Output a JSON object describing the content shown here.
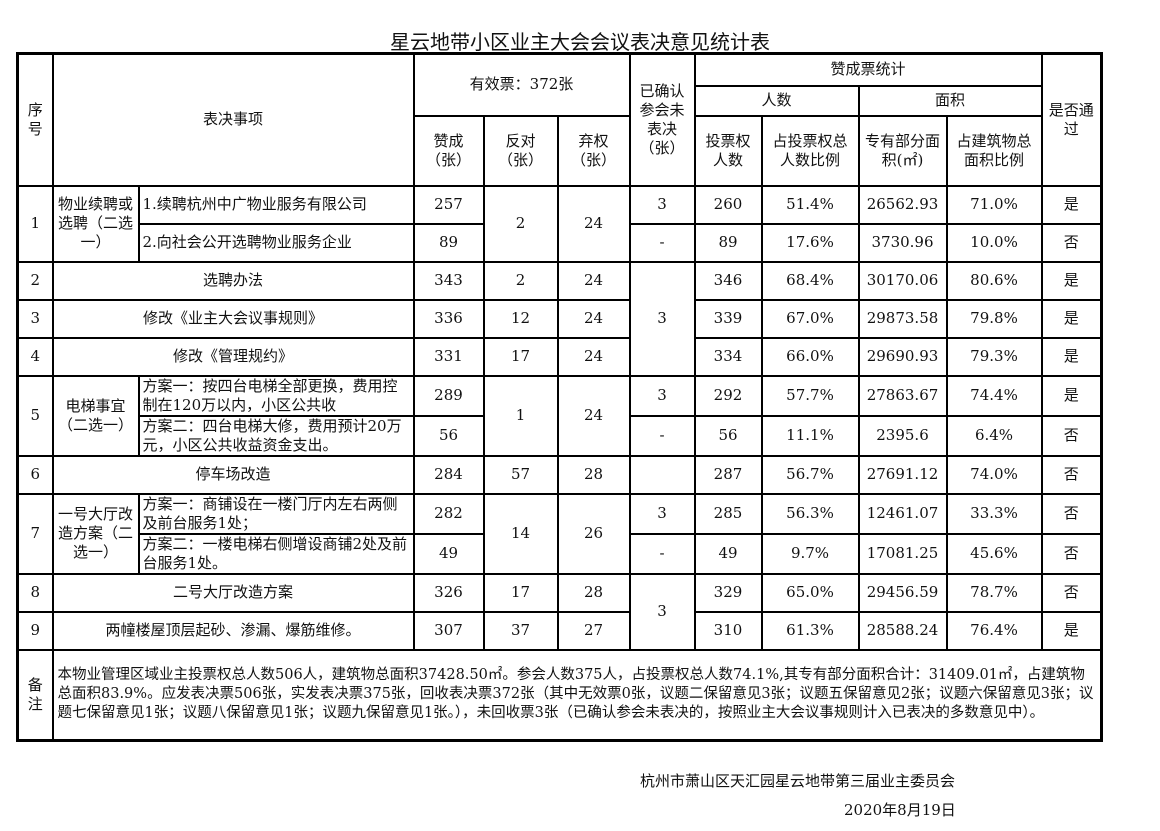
{
  "title": "星云地带小区业主大会会议表决意见统计表",
  "header": {
    "seq": "序号",
    "item": "表决事项",
    "valid": "有效票：372张",
    "yes": "赞成（张）",
    "against": "反对（张）",
    "abstain": "弃权（张）",
    "unvoted": "已确认参会未表决（张）",
    "stats": "赞成票统计",
    "people": "人数",
    "area": "面积",
    "voters": "投票权人数",
    "voter_ratio": "占投票权总人数比例",
    "exclusive_area": "专有部分面积(㎡)",
    "area_ratio": "占建筑物总面积比例",
    "passed": "是否通过"
  },
  "rows": [
    {
      "no": "1",
      "group": "物业续聘或选聘（二选一）",
      "against": "2",
      "abstain": "24",
      "options": [
        {
          "text": "1.续聘杭州中广物业服务有限公司",
          "yes": "257",
          "unvoted": "3",
          "voters": "260",
          "voter_ratio": "51.4%",
          "area": "26562.93",
          "area_ratio": "71.0%",
          "passed": "是"
        },
        {
          "text": "2.向社会公开选聘物业服务企业",
          "yes": "89",
          "unvoted": "-",
          "voters": "89",
          "voter_ratio": "17.6%",
          "area": "3730.96",
          "area_ratio": "10.0%",
          "passed": "否"
        }
      ]
    },
    {
      "no": "2",
      "text": "选聘办法",
      "yes": "343",
      "against": "2",
      "abstain": "24",
      "unvoted": "3",
      "voters": "346",
      "voter_ratio": "68.4%",
      "area": "30170.06",
      "area_ratio": "80.6%",
      "passed": "是"
    },
    {
      "no": "3",
      "text": "修改《业主大会议事规则》",
      "yes": "336",
      "against": "12",
      "abstain": "24",
      "voters": "339",
      "voter_ratio": "67.0%",
      "area": "29873.58",
      "area_ratio": "79.8%",
      "passed": "是"
    },
    {
      "no": "4",
      "text": "修改《管理规约》",
      "yes": "331",
      "against": "17",
      "abstain": "24",
      "voters": "334",
      "voter_ratio": "66.0%",
      "area": "29690.93",
      "area_ratio": "79.3%",
      "passed": "是"
    },
    {
      "no": "5",
      "group": "电梯事宜（二选一）",
      "against": "1",
      "abstain": "24",
      "options": [
        {
          "text": "方案一：按四台电梯全部更换，费用控制在120万以内，小区公共收",
          "yes": "289",
          "unvoted": "3",
          "voters": "292",
          "voter_ratio": "57.7%",
          "area": "27863.67",
          "area_ratio": "74.4%",
          "passed": "是"
        },
        {
          "text": "方案二：四台电梯大修，费用预计20万元，小区公共收益资金支出。",
          "yes": "56",
          "unvoted": "-",
          "voters": "56",
          "voter_ratio": "11.1%",
          "area": "2395.6",
          "area_ratio": "6.4%",
          "passed": "否"
        }
      ]
    },
    {
      "no": "6",
      "text": "停车场改造",
      "yes": "284",
      "against": "57",
      "abstain": "28",
      "unvoted": "",
      "voters": "287",
      "voter_ratio": "56.7%",
      "area": "27691.12",
      "area_ratio": "74.0%",
      "passed": "否"
    },
    {
      "no": "7",
      "group": "一号大厅改造方案（二选一）",
      "against": "14",
      "abstain": "26",
      "options": [
        {
          "text": "方案一：商铺设在一楼门厅内左右两侧及前台服务1处；",
          "yes": "282",
          "unvoted": "3",
          "voters": "285",
          "voter_ratio": "56.3%",
          "area": "12461.07",
          "area_ratio": "33.3%",
          "passed": "否"
        },
        {
          "text": "方案二：一楼电梯右侧增设商铺2处及前台服务1处。",
          "yes": "49",
          "unvoted": "-",
          "voters": "49",
          "voter_ratio": "9.7%",
          "area": "17081.25",
          "area_ratio": "45.6%",
          "passed": "否"
        }
      ]
    },
    {
      "no": "8",
      "text": "二号大厅改造方案",
      "yes": "326",
      "against": "17",
      "abstain": "28",
      "unvoted": "3",
      "voters": "329",
      "voter_ratio": "65.0%",
      "area": "29456.59",
      "area_ratio": "78.7%",
      "passed": "否"
    },
    {
      "no": "9",
      "text": "两幢楼屋顶层起砂、渗漏、爆筋维修。",
      "yes": "307",
      "against": "37",
      "abstain": "27",
      "voters": "310",
      "voter_ratio": "61.3%",
      "area": "28588.24",
      "area_ratio": "76.4%",
      "passed": "是"
    }
  ],
  "notes": {
    "label": "备注",
    "text": "本物业管理区域业主投票权总人数506人，建筑物总面积37428.50㎡。参会人数375人，占投票权总人数74.1%,其专有部分面积合计：31409.01㎡，占建筑物总面积83.9%。应发表决票506张，实发表决票375张，回收表决票372张（其中无效票0张，议题二保留意见3张；议题五保留意见2张；议题六保留意见3张；议题七保留意见1张；议题八保留意见1张；议题九保留意见1张。），未回收票3张（已确认参会未表决的，按照业主大会议事规则计入已表决的多数意见中）。"
  },
  "footer": {
    "org": "杭州市萧山区天汇园星云地带第三届业主委员会",
    "date": "2020年8月19日"
  }
}
